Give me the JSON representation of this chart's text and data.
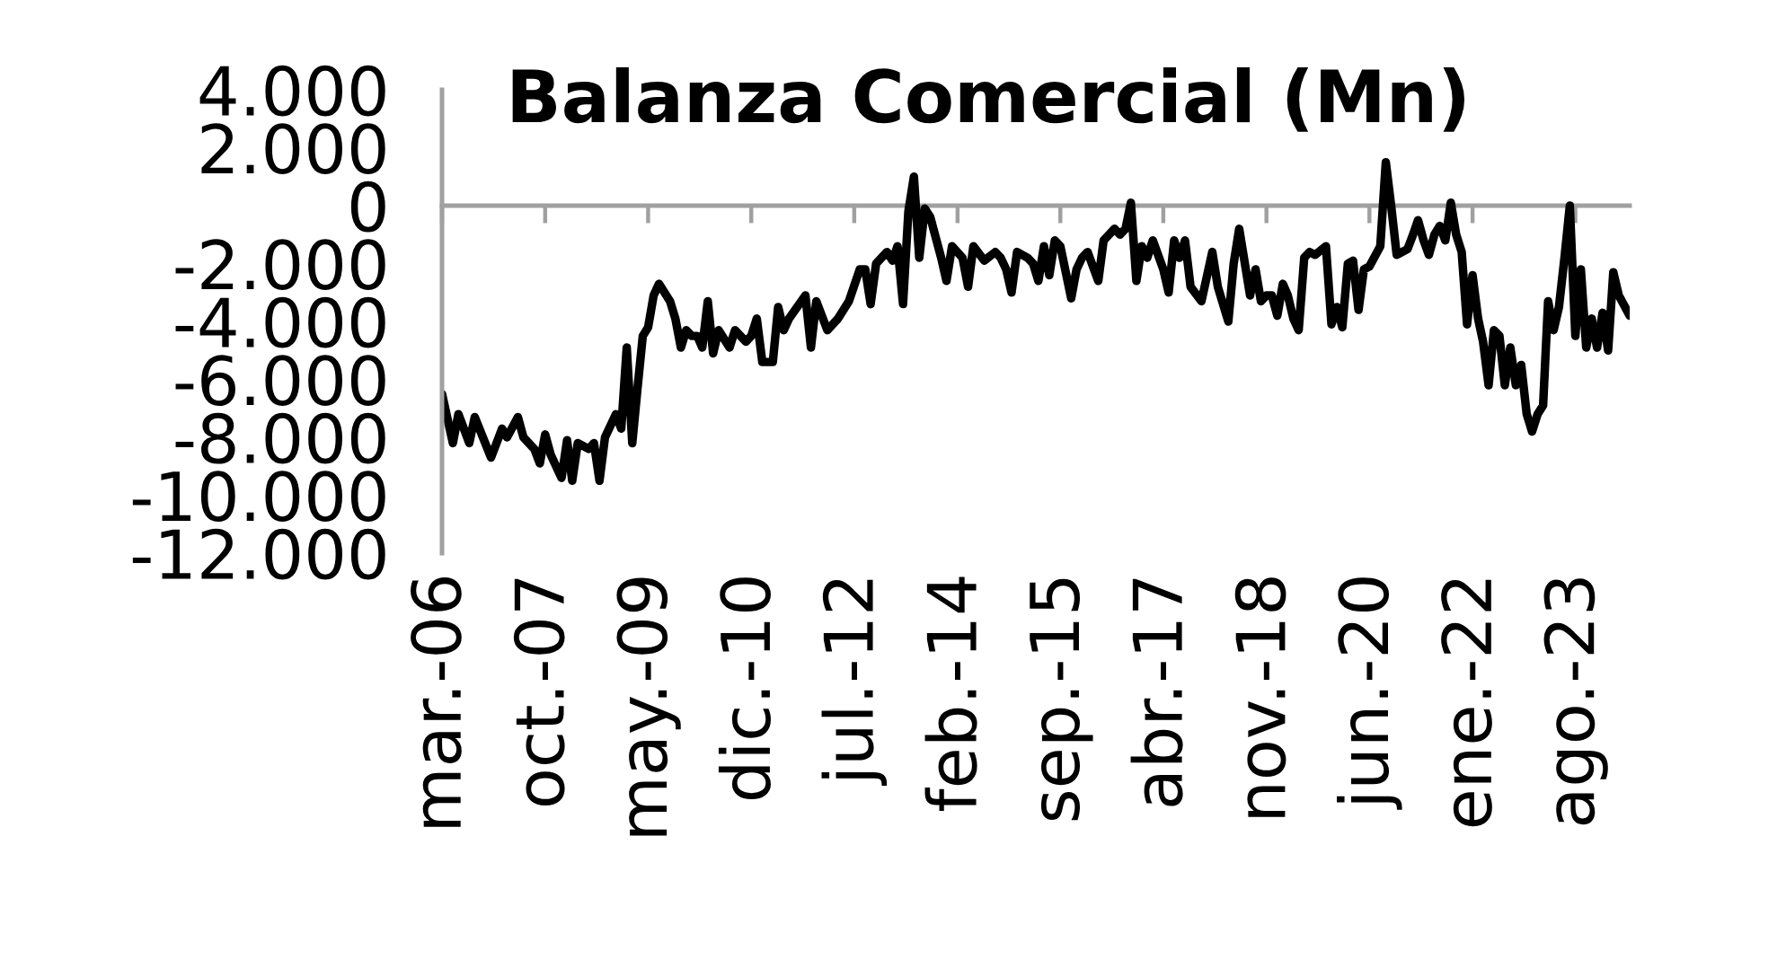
{
  "chart_data": {
    "type": "line",
    "title": "Balanza Comercial (Mn)",
    "x": [
      "2006-03",
      "2006-05",
      "2006-06",
      "2006-08",
      "2006-09",
      "2006-12",
      "2007-02",
      "2007-03",
      "2007-05",
      "2007-06",
      "2007-08",
      "2007-09",
      "2007-10",
      "2007-11",
      "2008-01",
      "2008-02",
      "2008-03",
      "2008-04",
      "2008-06",
      "2008-07",
      "2008-08",
      "2008-09",
      "2008-11",
      "2008-12",
      "2009-01",
      "2009-02",
      "2009-03",
      "2009-04",
      "2009-05",
      "2009-06",
      "2009-07",
      "2009-08",
      "2009-09",
      "2009-10",
      "2009-11",
      "2009-12",
      "2010-01",
      "2010-02",
      "2010-03",
      "2010-04",
      "2010-05",
      "2010-06",
      "2010-08",
      "2010-09",
      "2010-11",
      "2010-12",
      "2011-01",
      "2011-02",
      "2011-04",
      "2011-05",
      "2011-06",
      "2011-07",
      "2011-10",
      "2011-11",
      "2011-12",
      "2012-02",
      "2012-04",
      "2012-06",
      "2012-08",
      "2012-09",
      "2012-10",
      "2012-11",
      "2013-01",
      "2013-02",
      "2013-03",
      "2013-04",
      "2013-05",
      "2013-06",
      "2013-07",
      "2013-08",
      "2013-09",
      "2013-11",
      "2013-12",
      "2014-01",
      "2014-03",
      "2014-04",
      "2014-05",
      "2014-07",
      "2014-09",
      "2014-10",
      "2014-11",
      "2014-12",
      "2015-01",
      "2015-03",
      "2015-04",
      "2015-05",
      "2015-06",
      "2015-07",
      "2015-08",
      "2015-09",
      "2015-11",
      "2015-12",
      "2016-01",
      "2016-02",
      "2016-04",
      "2016-05",
      "2016-07",
      "2016-08",
      "2016-09",
      "2016-10",
      "2016-11",
      "2016-12",
      "2017-01",
      "2017-02",
      "2017-04",
      "2017-05",
      "2017-06",
      "2017-07",
      "2017-08",
      "2017-09",
      "2017-11",
      "2018-01",
      "2018-02",
      "2018-04",
      "2018-05",
      "2018-06",
      "2018-08",
      "2018-09",
      "2018-10",
      "2018-11",
      "2018-12",
      "2019-01",
      "2019-02",
      "2019-03",
      "2019-04",
      "2019-05",
      "2019-06",
      "2019-07",
      "2019-08",
      "2019-10",
      "2019-11",
      "2019-12",
      "2020-01",
      "2020-02",
      "2020-03",
      "2020-04",
      "2020-05",
      "2020-06",
      "2020-08",
      "2020-09",
      "2020-10",
      "2020-11",
      "2021-01",
      "2021-02",
      "2021-03",
      "2021-04",
      "2021-05",
      "2021-06",
      "2021-07",
      "2021-08",
      "2021-09",
      "2021-10",
      "2021-11",
      "2021-12",
      "2022-01",
      "2022-02",
      "2022-03",
      "2022-04",
      "2022-05",
      "2022-06",
      "2022-07",
      "2022-08",
      "2022-09",
      "2022-10",
      "2022-11",
      "2022-12",
      "2023-01",
      "2023-02",
      "2023-03",
      "2023-04",
      "2023-05",
      "2023-06",
      "2023-07",
      "2023-08",
      "2023-09",
      "2023-10",
      "2023-11",
      "2023-12",
      "2024-01",
      "2024-02",
      "2024-03",
      "2024-04",
      "2024-06"
    ],
    "series": [
      {
        "color": "#000000",
        "values": [
          -6500,
          -8200,
          -7200,
          -8200,
          -7300,
          -8700,
          -7700,
          -8000,
          -7300,
          -8000,
          -8400,
          -8900,
          -7900,
          -8600,
          -9400,
          -8100,
          -9500,
          -8200,
          -8400,
          -8200,
          -9500,
          -8000,
          -7200,
          -7700,
          -4900,
          -8200,
          -6400,
          -4500,
          -4200,
          -3100,
          -2700,
          -3000,
          -3300,
          -3900,
          -4900,
          -4300,
          -4500,
          -4500,
          -4900,
          -3300,
          -5100,
          -4300,
          -4900,
          -4300,
          -4700,
          -4500,
          -3900,
          -5400,
          -5400,
          -3500,
          -4300,
          -3900,
          -3100,
          -4900,
          -3300,
          -4300,
          -3900,
          -3300,
          -2200,
          -2200,
          -3400,
          -2000,
          -1600,
          -1900,
          -1400,
          -3400,
          -200,
          1000,
          -1800,
          -100,
          -400,
          -1800,
          -2600,
          -1400,
          -1800,
          -2800,
          -1400,
          -1900,
          -1600,
          -1800,
          -2200,
          -3000,
          -1600,
          -1800,
          -2000,
          -2600,
          -1400,
          -2400,
          -1200,
          -1400,
          -3200,
          -2200,
          -1800,
          -1600,
          -2600,
          -1200,
          -800,
          -1000,
          -800,
          100,
          -2600,
          -1400,
          -1800,
          -1200,
          -2200,
          -3000,
          -1200,
          -1800,
          -1200,
          -2800,
          -3300,
          -1600,
          -2800,
          -4000,
          -2000,
          -800,
          -3100,
          -2200,
          -3300,
          -3100,
          -3100,
          -3800,
          -2700,
          -3100,
          -3900,
          -4300,
          -1800,
          -1600,
          -1700,
          -1400,
          -4100,
          -3500,
          -4200,
          -2000,
          -1900,
          -3600,
          -2200,
          -2100,
          -1400,
          1500,
          0,
          -1700,
          -1500,
          -1000,
          -500,
          -1200,
          -1700,
          -1000,
          -700,
          -1200,
          100,
          -1000,
          -1600,
          -4100,
          -2400,
          -3900,
          -4700,
          -6200,
          -4300,
          -4500,
          -6200,
          -4900,
          -6200,
          -5500,
          -7200,
          -7800,
          -7200,
          -6900,
          -3300,
          -4300,
          -3500,
          -1800,
          0,
          -4500,
          -2200,
          -4900,
          -3900,
          -4900,
          -3700,
          -5000,
          -2300,
          -3100,
          -3800
        ]
      }
    ],
    "xlim": [
      "2006-03",
      "2024-06"
    ],
    "xticks": [
      {
        "value": "2006-03",
        "label": "mar.-06"
      },
      {
        "value": "2007-10",
        "label": "oct.-07"
      },
      {
        "value": "2009-05",
        "label": "may.-09"
      },
      {
        "value": "2010-12",
        "label": "dic.-10"
      },
      {
        "value": "2012-07",
        "label": "jul.-12"
      },
      {
        "value": "2014-02",
        "label": "feb.-14"
      },
      {
        "value": "2015-09",
        "label": "sep.-15"
      },
      {
        "value": "2017-04",
        "label": "abr.-17"
      },
      {
        "value": "2018-11",
        "label": "nov.-18"
      },
      {
        "value": "2020-06",
        "label": "jun.-20"
      },
      {
        "value": "2022-01",
        "label": "ene.-22"
      },
      {
        "value": "2023-08",
        "label": "ago.-23"
      }
    ],
    "ylim": [
      -12000,
      4000
    ],
    "yticks": [
      {
        "value": 4000,
        "label": "4.000"
      },
      {
        "value": 2000,
        "label": "2.000"
      },
      0,
      {
        "value": -2000,
        "label": "-2.000"
      },
      {
        "value": -4000,
        "label": "-4.000"
      },
      {
        "value": -6000,
        "label": "-6.000"
      },
      {
        "value": -8000,
        "label": "-8.000"
      },
      {
        "value": -10000,
        "label": "-10.000"
      },
      {
        "value": -12000,
        "label": "-12.000"
      }
    ]
  }
}
